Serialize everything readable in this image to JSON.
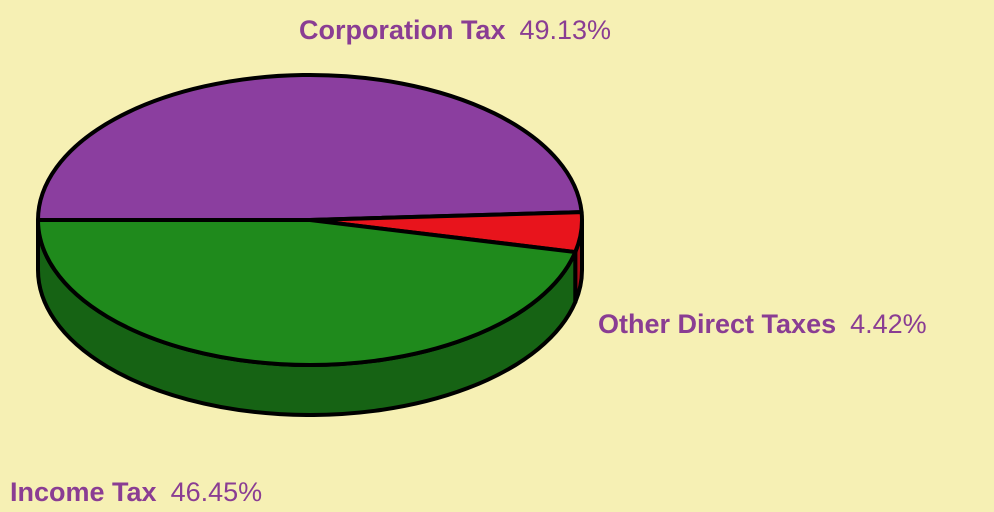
{
  "chart_data": {
    "type": "pie",
    "categories": [
      "Corporation Tax",
      "Other Direct Taxes",
      "Income Tax"
    ],
    "values": [
      49.13,
      4.42,
      46.45
    ],
    "value_labels": [
      "49.13%",
      "4.42%",
      "46.45%"
    ],
    "colors": [
      "#8b3e9f",
      "#e8141c",
      "#1f8a1c"
    ]
  }
}
